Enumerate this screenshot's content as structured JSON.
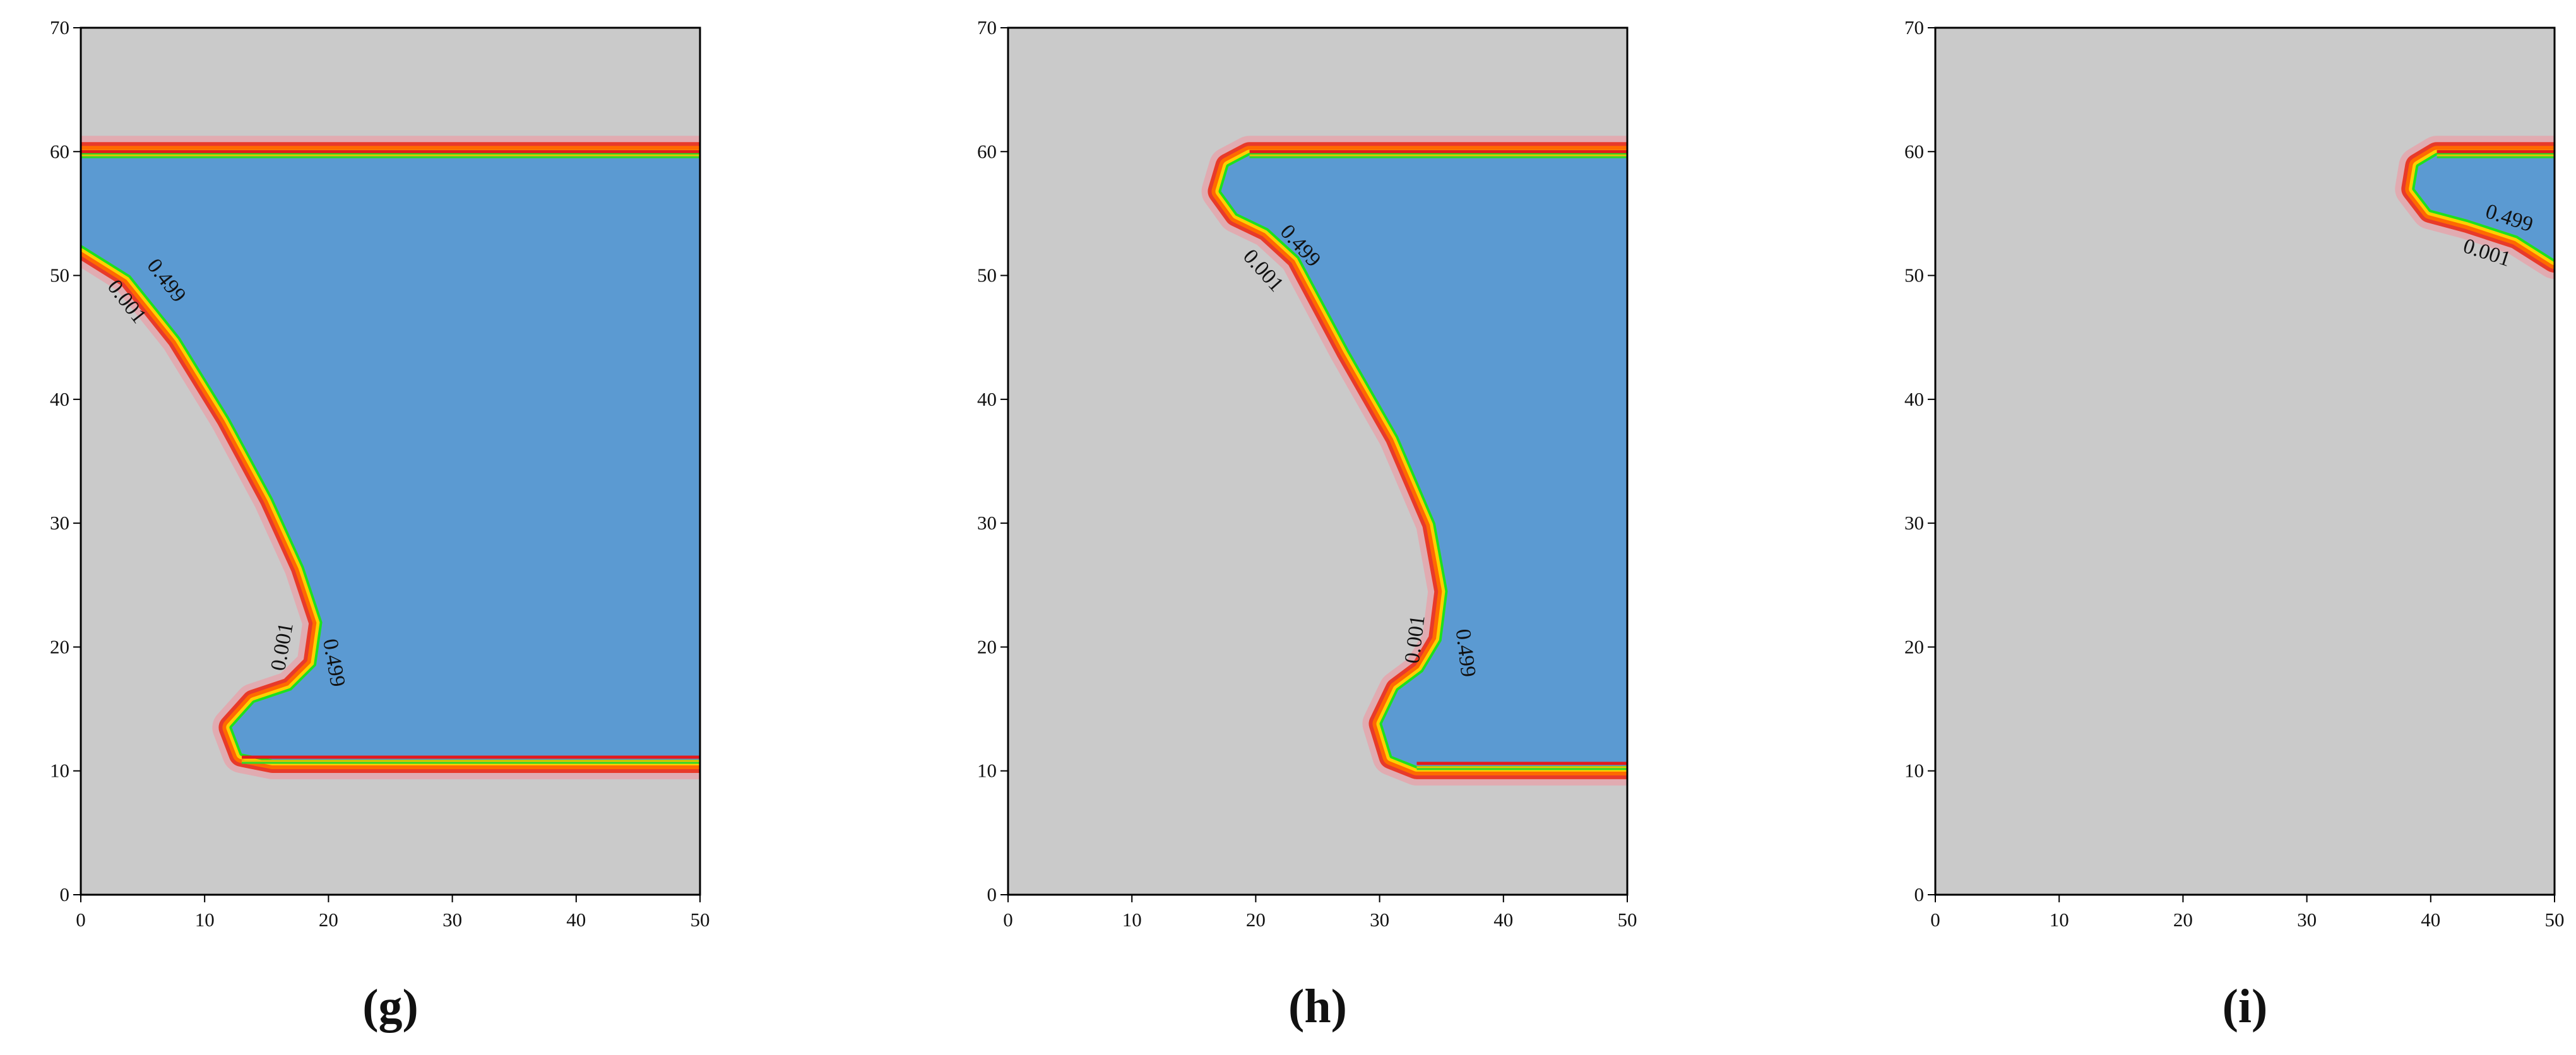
{
  "chart_data": [
    {
      "type": "contour",
      "panel_label": "(g)",
      "xlim": [
        0,
        50
      ],
      "ylim": [
        0,
        70
      ],
      "xticks": [
        0,
        10,
        20,
        30,
        40,
        50
      ],
      "yticks": [
        0,
        10,
        20,
        30,
        40,
        50,
        60,
        70
      ],
      "grid": false,
      "background_color": "#cacaca",
      "fluid_color": "#5b9ad2",
      "interface_colors": [
        "#e8a0a8",
        "#e83a2a",
        "#ff6a00",
        "#ffd000",
        "#1ee01e"
      ],
      "fluid_region_boundary": [
        [
          0,
          52.5
        ],
        [
          4,
          50
        ],
        [
          8,
          45
        ],
        [
          12,
          38.5
        ],
        [
          15.5,
          32
        ],
        [
          18,
          26.5
        ],
        [
          19.5,
          22
        ],
        [
          19,
          18.5
        ],
        [
          17,
          16.5
        ],
        [
          14,
          15.5
        ],
        [
          12.2,
          13.5
        ],
        [
          13,
          11.4
        ],
        [
          15.5,
          10.9
        ],
        [
          50,
          10.9
        ],
        [
          50,
          59.7
        ],
        [
          0,
          59.7
        ]
      ],
      "top_wall_y": 59.8,
      "bottom_wall_y": 10.9,
      "contour_labels": [
        {
          "text": "0.499",
          "x": 6.8,
          "y": 49.5,
          "angle": 52
        },
        {
          "text": "0.001",
          "x": 3.6,
          "y": 47.8,
          "angle": 52
        },
        {
          "text": "0.001",
          "x": 16.4,
          "y": 20.0,
          "angle": -80
        },
        {
          "text": "0.499",
          "x": 20.3,
          "y": 18.7,
          "angle": 80
        }
      ]
    },
    {
      "type": "contour",
      "panel_label": "(h)",
      "xlim": [
        0,
        50
      ],
      "ylim": [
        0,
        70
      ],
      "xticks": [
        0,
        10,
        20,
        30,
        40,
        50
      ],
      "yticks": [
        0,
        10,
        20,
        30,
        40,
        50,
        60,
        70
      ],
      "grid": false,
      "background_color": "#cacaca",
      "fluid_color": "#5b9ad2",
      "interface_colors": [
        "#e8a0a8",
        "#e83a2a",
        "#ff6a00",
        "#ffd000",
        "#1ee01e"
      ],
      "fluid_region_boundary": [
        [
          19.5,
          59.7
        ],
        [
          17.8,
          58.8
        ],
        [
          17.2,
          56.8
        ],
        [
          18.5,
          55
        ],
        [
          21,
          53.8
        ],
        [
          23.5,
          51.5
        ],
        [
          27.5,
          44
        ],
        [
          31.5,
          37
        ],
        [
          34.5,
          30
        ],
        [
          35.5,
          24.5
        ],
        [
          35,
          20.5
        ],
        [
          33.5,
          18
        ],
        [
          31.5,
          16.5
        ],
        [
          30.2,
          13.8
        ],
        [
          31,
          11.2
        ],
        [
          33,
          10.4
        ],
        [
          50,
          10.4
        ],
        [
          50,
          59.7
        ]
      ],
      "top_wall_y": 59.8,
      "bottom_wall_y": 10.4,
      "contour_labels": [
        {
          "text": "0.499",
          "x": 23.5,
          "y": 52.3,
          "angle": 48
        },
        {
          "text": "0.001",
          "x": 20.5,
          "y": 50.3,
          "angle": 48
        },
        {
          "text": "0.001",
          "x": 33.0,
          "y": 20.6,
          "angle": -83
        },
        {
          "text": "0.499",
          "x": 36.8,
          "y": 19.5,
          "angle": 83
        }
      ]
    },
    {
      "type": "contour",
      "panel_label": "(i)",
      "xlim": [
        0,
        50
      ],
      "ylim": [
        0,
        70
      ],
      "xticks": [
        0,
        10,
        20,
        30,
        40,
        50
      ],
      "yticks": [
        0,
        10,
        20,
        30,
        40,
        50,
        60,
        70
      ],
      "grid": false,
      "background_color": "#cacaca",
      "fluid_color": "#5b9ad2",
      "interface_colors": [
        "#e8a0a8",
        "#e83a2a",
        "#ff6a00",
        "#ffd000",
        "#1ee01e"
      ],
      "fluid_region_boundary": [
        [
          40.5,
          59.7
        ],
        [
          39,
          58.8
        ],
        [
          38.7,
          57
        ],
        [
          40,
          55.3
        ],
        [
          43,
          54.5
        ],
        [
          47,
          53.2
        ],
        [
          50,
          51.3
        ],
        [
          50,
          59.7
        ]
      ],
      "top_wall_y": 59.8,
      "bottom_wall_y": null,
      "contour_labels": [
        {
          "text": "0.499",
          "x": 46.3,
          "y": 54.5,
          "angle": 18
        },
        {
          "text": "0.001",
          "x": 44.5,
          "y": 51.7,
          "angle": 18
        }
      ]
    }
  ]
}
